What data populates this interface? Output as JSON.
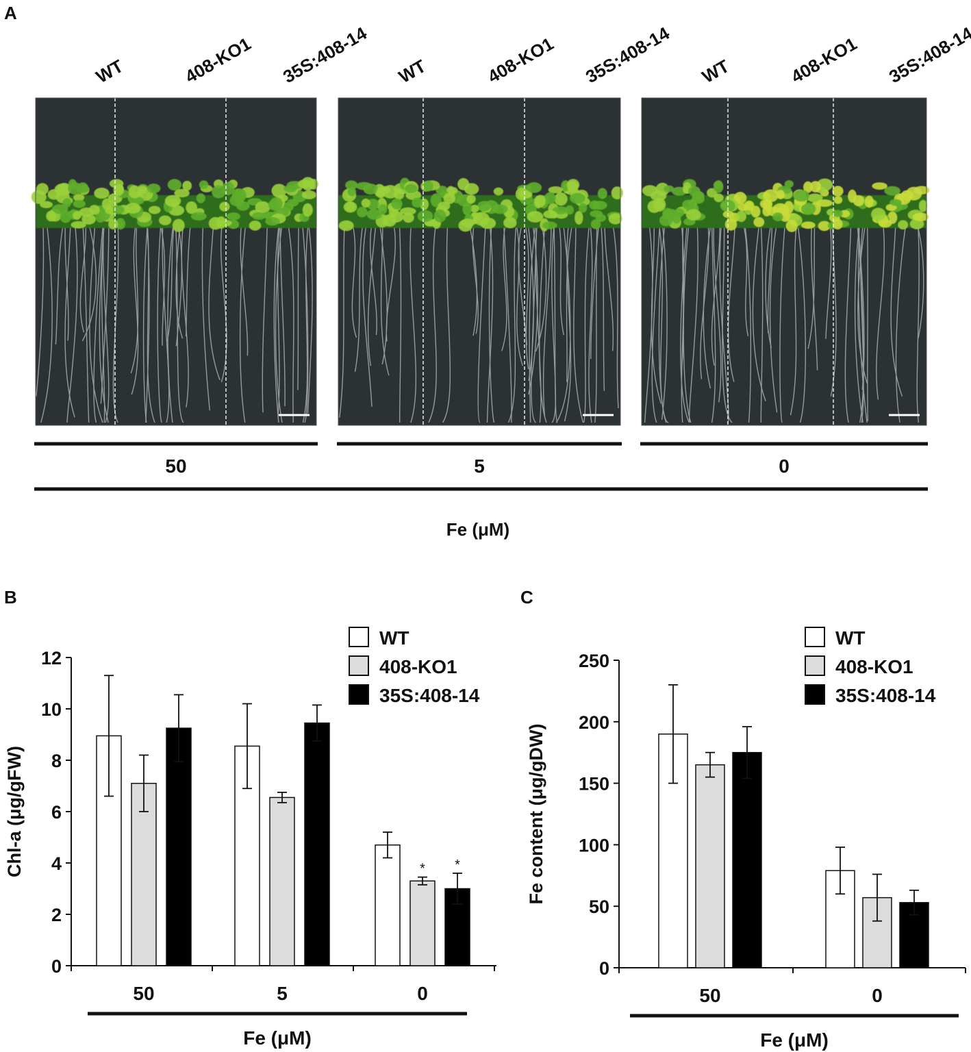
{
  "panel_a": {
    "letter": "A",
    "genotypes": [
      "WT",
      "408-KO1",
      "35S:408-14"
    ],
    "plates": [
      {
        "fe": "50"
      },
      {
        "fe": "5"
      },
      {
        "fe": "0"
      }
    ],
    "axis_label": "Fe (μM)",
    "colors": {
      "agar": "#2c3134",
      "leaf": "#5fae2c",
      "leaf_light": "#9ad03a",
      "root": "#b9bfbf",
      "chlorotic": "#c8dc3a"
    }
  },
  "chart_data": [
    {
      "panel": "B",
      "type": "bar",
      "ylabel": "Chl-a (μg/gFW)",
      "xlabel": "Fe (μM)",
      "categories": [
        "50",
        "5",
        "0"
      ],
      "ylim": [
        0,
        12
      ],
      "yticks": [
        0,
        2,
        4,
        6,
        8,
        10,
        12
      ],
      "legend_position": "top-right",
      "series": [
        {
          "name": "WT",
          "color": "#ffffff",
          "values": [
            8.95,
            8.55,
            4.7
          ],
          "errors": [
            2.35,
            1.65,
            0.5
          ]
        },
        {
          "name": "408-KO1",
          "color": "#dcdcdc",
          "values": [
            7.1,
            6.55,
            3.3
          ],
          "errors": [
            1.1,
            0.2,
            0.15
          ]
        },
        {
          "name": "35S:408-14",
          "color": "#000000",
          "values": [
            9.25,
            9.45,
            3.0
          ],
          "errors": [
            1.3,
            0.7,
            0.6
          ]
        }
      ],
      "annotations": [
        {
          "series": "408-KO1",
          "category": "0",
          "text": "*"
        },
        {
          "series": "35S:408-14",
          "category": "0",
          "text": "*"
        }
      ]
    },
    {
      "panel": "C",
      "type": "bar",
      "ylabel": "Fe content (μg/gDW)",
      "xlabel": "Fe (μM)",
      "categories": [
        "50",
        "0"
      ],
      "ylim": [
        0,
        250
      ],
      "yticks": [
        0,
        50,
        100,
        150,
        200,
        250
      ],
      "legend_position": "top-right",
      "series": [
        {
          "name": "WT",
          "color": "#ffffff",
          "values": [
            190,
            79
          ],
          "errors": [
            40,
            19
          ]
        },
        {
          "name": "408-KO1",
          "color": "#dcdcdc",
          "values": [
            165,
            57
          ],
          "errors": [
            10,
            19
          ]
        },
        {
          "name": "35S:408-14",
          "color": "#000000",
          "values": [
            175,
            53
          ],
          "errors": [
            21,
            10
          ]
        }
      ]
    }
  ]
}
